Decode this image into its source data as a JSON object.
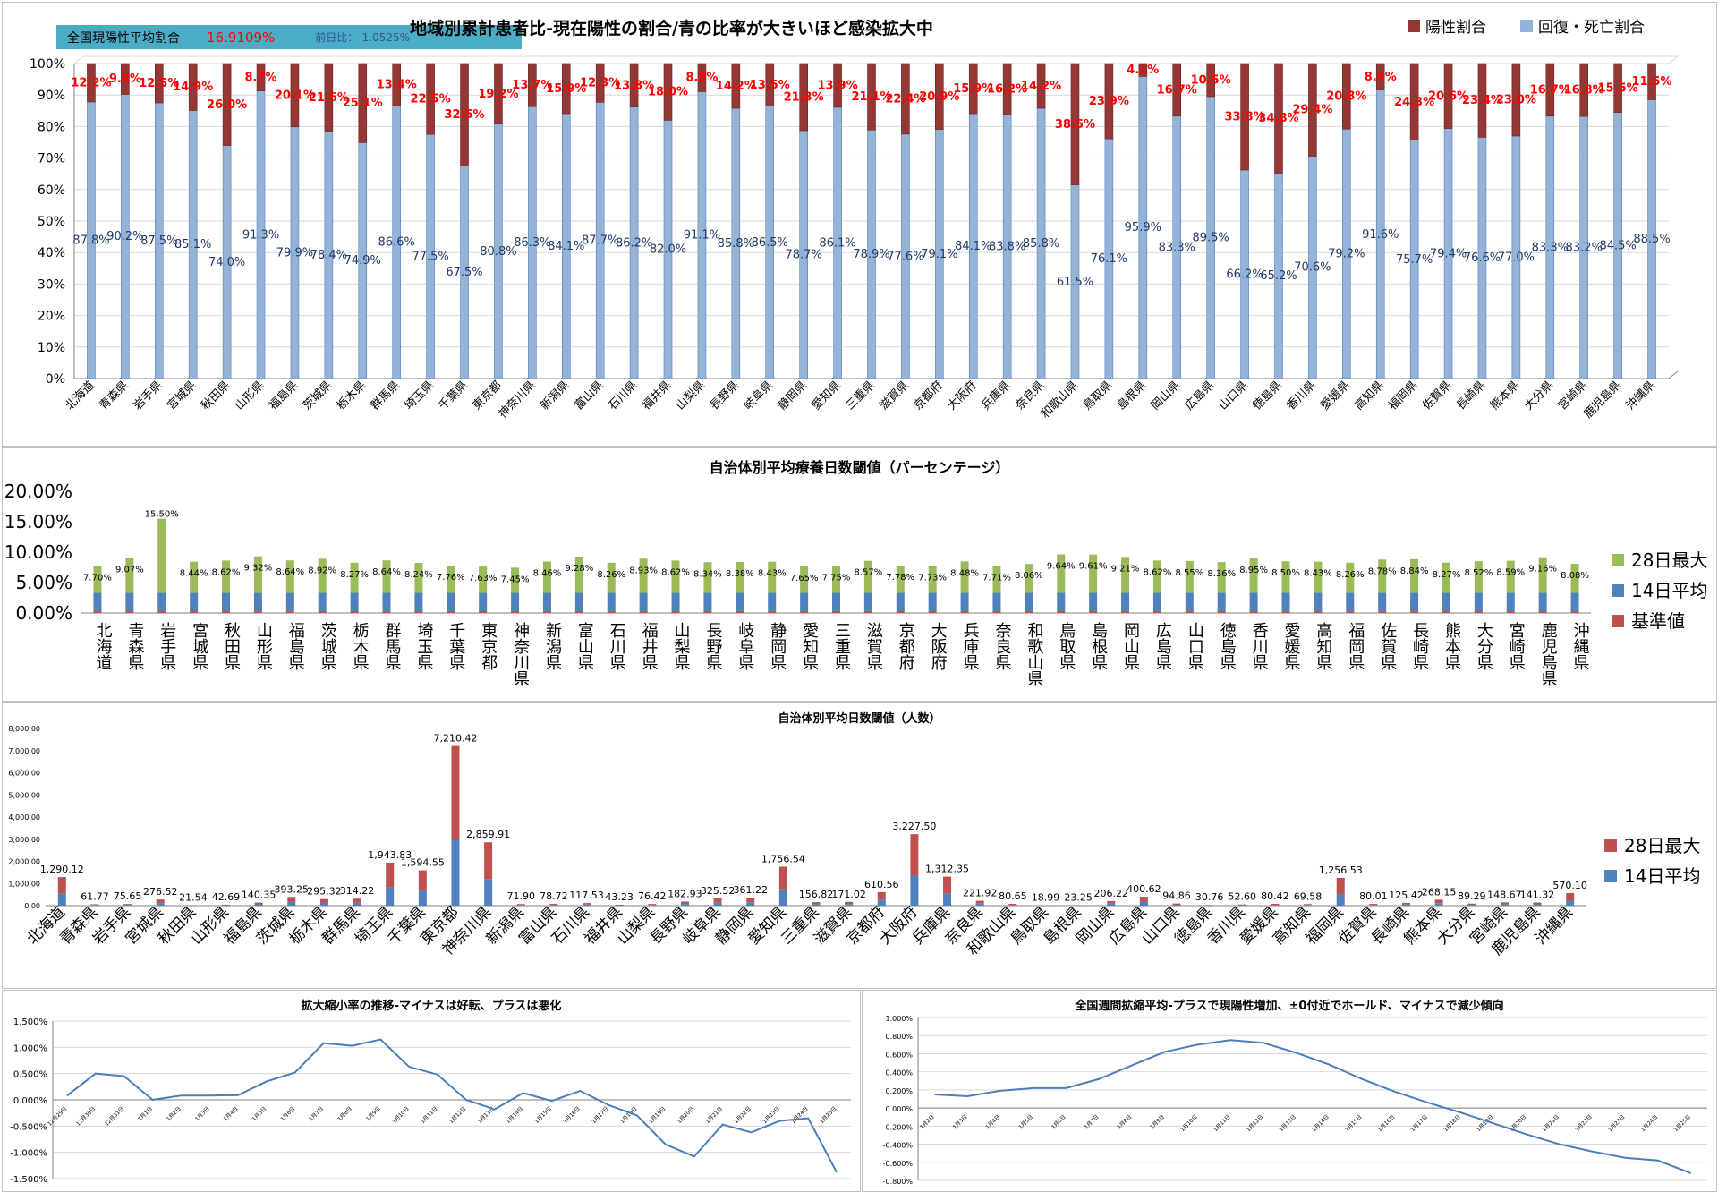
{
  "prefectures": [
    "北海道",
    "青森県",
    "岩手県",
    "宮城県",
    "秋田県",
    "山形県",
    "福島県",
    "茨城県",
    "栃木県",
    "群馬県",
    "埼玉県",
    "千葉県",
    "東京都",
    "神奈川県",
    "新潟県",
    "富山県",
    "石川県",
    "福井県",
    "山梨県",
    "長野県",
    "岐阜県",
    "静岡県",
    "愛知県",
    "三重県",
    "滋賀県",
    "京都府",
    "大阪府",
    "兵庫県",
    "奈良県",
    "和歌山県",
    "鳥取県",
    "島根県",
    "岡山県",
    "広島県",
    "山口県",
    "徳島県",
    "香川県",
    "愛媛県",
    "高知県",
    "福岡県",
    "佐賀県",
    "長崎県",
    "熊本県",
    "大分県",
    "宮崎県",
    "鹿児島県",
    "沖縄県"
  ],
  "kpi": {
    "label": "全国現陽性平均割合",
    "value": "16.9109%",
    "diff": "前日比：-1.0525%"
  },
  "colors": {
    "positive": "#953735",
    "recovered": "#95b3d7",
    "max28": "#9bbb59",
    "avg14": "#4f81bd",
    "base": "#c0504d",
    "line": "#4a7ebb",
    "kpi_bg": "#4bacc6",
    "kpi_red": "#ff0000"
  },
  "chart_data": [
    {
      "type": "bar",
      "title": "地域別累計患者比-現在陽性の割合/青の比率が大きいほど感染拡大中",
      "stacked": true,
      "series": [
        {
          "name": "回復・死亡割合",
          "values": [
            87.8,
            90.2,
            87.5,
            85.1,
            74.0,
            91.3,
            79.9,
            78.4,
            74.9,
            86.6,
            77.5,
            67.5,
            80.8,
            86.3,
            84.1,
            87.7,
            86.2,
            82.0,
            91.1,
            85.8,
            86.5,
            78.7,
            86.1,
            78.9,
            77.6,
            79.1,
            84.1,
            83.8,
            85.8,
            61.5,
            76.1,
            95.9,
            83.3,
            89.5,
            66.2,
            65.2,
            70.6,
            79.2,
            91.6,
            75.7,
            79.4,
            76.6,
            77.0,
            83.3,
            83.2,
            84.5,
            88.5
          ]
        },
        {
          "name": "陽性割合",
          "values": [
            12.2,
            9.8,
            12.5,
            14.9,
            26.0,
            8.7,
            20.1,
            21.6,
            25.1,
            13.4,
            22.5,
            32.5,
            19.2,
            13.7,
            15.9,
            12.3,
            13.8,
            18.0,
            8.9,
            14.2,
            13.5,
            21.3,
            13.9,
            21.1,
            22.4,
            20.9,
            15.9,
            16.2,
            14.2,
            38.5,
            23.9,
            4.1,
            16.7,
            10.5,
            33.8,
            34.8,
            29.4,
            20.8,
            8.4,
            24.3,
            20.6,
            23.4,
            23.0,
            16.7,
            16.8,
            15.5,
            11.5
          ]
        }
      ],
      "ylim": [
        0,
        100
      ],
      "yticks": [
        "0%",
        "10%",
        "20%",
        "30%",
        "40%",
        "50%",
        "60%",
        "70%",
        "80%",
        "90%",
        "100%"
      ],
      "grid": true,
      "legend_position": "top-right"
    },
    {
      "type": "bar",
      "title": "自治体別平均療養日数閾値（パーセンテージ）",
      "stacked": true,
      "series": [
        {
          "name": "28日最大",
          "values": [
            7.7,
            9.07,
            15.5,
            8.44,
            8.62,
            9.32,
            8.64,
            8.92,
            8.27,
            8.64,
            8.24,
            7.76,
            7.63,
            7.45,
            8.46,
            9.28,
            8.26,
            8.93,
            8.62,
            8.34,
            8.38,
            8.43,
            7.65,
            7.75,
            8.57,
            7.78,
            7.73,
            8.48,
            7.71,
            8.06,
            9.64,
            9.61,
            9.21,
            8.62,
            8.55,
            8.36,
            8.95,
            8.5,
            8.43,
            8.26,
            8.78,
            8.84,
            8.27,
            8.52,
            8.59,
            9.16,
            8.08
          ]
        },
        {
          "name": "14日平均"
        },
        {
          "name": "基準値"
        }
      ],
      "ylim": [
        0,
        20
      ],
      "yticks": [
        "0.00%",
        "5.00%",
        "10.00%",
        "15.00%",
        "20.00%"
      ],
      "legend_position": "right"
    },
    {
      "type": "bar",
      "title": "自治体別平均日数閾値（人数）",
      "stacked": true,
      "series": [
        {
          "name": "28日最大",
          "values": [
            1290.12,
            61.77,
            75.65,
            276.52,
            21.54,
            42.69,
            140.35,
            393.25,
            295.32,
            314.22,
            1943.83,
            1594.55,
            7210.42,
            2859.91,
            71.9,
            78.72,
            117.53,
            43.23,
            76.42,
            182.93,
            325.52,
            361.22,
            1756.54,
            156.82,
            171.02,
            610.56,
            3227.5,
            1312.35,
            221.92,
            80.65,
            18.99,
            23.25,
            206.22,
            400.62,
            94.86,
            30.76,
            52.6,
            80.42,
            69.58,
            1256.53,
            80.01,
            125.42,
            268.15,
            89.29,
            148.67,
            141.32,
            570.1
          ]
        },
        {
          "name": "14日平均"
        }
      ],
      "value_labels": [
        "1,290.12",
        "61.77",
        "75.65",
        "276.52",
        "21.54",
        "42.69",
        "140.35",
        "393.25",
        "295.32",
        "314.22",
        "1,943.83",
        "1,594.55",
        "7,210.42",
        "2,859.91",
        "71.90",
        "78.72",
        "117.53",
        "43.23",
        "76.42",
        "182.93",
        "325.52",
        "361.22",
        "1,756.54",
        "156.82",
        "171.02",
        "610.56",
        "3,227.50",
        "1,312.35",
        "221.92",
        "80.65",
        "18.99",
        "23.25",
        "206.22",
        "400.62",
        "94.86",
        "30.76",
        "52.60",
        "80.42",
        "69.58",
        "1,256.53",
        "80.01",
        "125.42",
        "268.15",
        "89.29",
        "148.67",
        "141.32",
        "570.10"
      ],
      "ylim": [
        0,
        8000
      ],
      "yticks": [
        "0.00",
        "1,000.00",
        "2,000.00",
        "3,000.00",
        "4,000.00",
        "5,000.00",
        "6,000.00",
        "7,000.00",
        "8,000.00"
      ],
      "legend_position": "right"
    },
    {
      "type": "line",
      "title": "拡大縮小率の推移-マイナスは好転、プラスは悪化",
      "x": [
        "12月29日",
        "12月30日",
        "12月31日",
        "1月1日",
        "1月2日",
        "1月3日",
        "1月4日",
        "1月5日",
        "1月6日",
        "1月7日",
        "1月8日",
        "1月9日",
        "1月10日",
        "1月11日",
        "1月12日",
        "1月13日",
        "1月14日",
        "1月15日",
        "1月16日",
        "1月17日",
        "1月18日",
        "1月19日",
        "1月20日",
        "1月21日",
        "1月22日",
        "1月23日",
        "1月24日",
        "1月25日"
      ],
      "series": [
        {
          "values": [
            0.08,
            0.5,
            0.45,
            0.0,
            0.08,
            0.08,
            0.09,
            0.35,
            0.52,
            1.08,
            1.03,
            1.15,
            0.63,
            0.48,
            0.0,
            -0.18,
            0.13,
            -0.02,
            0.17,
            -0.1,
            -0.3,
            -0.85,
            -1.08,
            -0.47,
            -0.62,
            -0.4,
            -0.35,
            -1.38
          ]
        }
      ],
      "ylim": [
        -1.5,
        1.5
      ],
      "yticks": [
        "1.500%",
        "1.000%",
        "0.500%",
        "0.000%",
        "-0.500%",
        "-1.000%",
        "-1.500%"
      ],
      "grid": true
    },
    {
      "type": "line",
      "title": "全国週間拡縮平均-プラスで現陽性増加、±0付近でホールド、マイナスで減少傾向",
      "x": [
        "1月2日",
        "1月3日",
        "1月4日",
        "1月5日",
        "1月6日",
        "1月7日",
        "1月8日",
        "1月9日",
        "1月10日",
        "1月11日",
        "1月12日",
        "1月13日",
        "1月14日",
        "1月15日",
        "1月16日",
        "1月17日",
        "1月18日",
        "1月19日",
        "1月20日",
        "1月21日",
        "1月22日",
        "1月23日",
        "1月24日",
        "1月25日"
      ],
      "series": [
        {
          "values": [
            0.15,
            0.13,
            0.19,
            0.22,
            0.22,
            0.32,
            0.47,
            0.62,
            0.7,
            0.75,
            0.72,
            0.61,
            0.48,
            0.32,
            0.18,
            0.06,
            -0.05,
            -0.17,
            -0.29,
            -0.4,
            -0.48,
            -0.55,
            -0.58,
            -0.72
          ]
        }
      ],
      "ylim": [
        -0.8,
        1.0
      ],
      "yticks": [
        "1.000%",
        "0.800%",
        "0.600%",
        "0.400%",
        "0.200%",
        "0.000%",
        "-0.200%",
        "-0.400%",
        "-0.600%",
        "-0.800%"
      ],
      "grid": true
    }
  ]
}
